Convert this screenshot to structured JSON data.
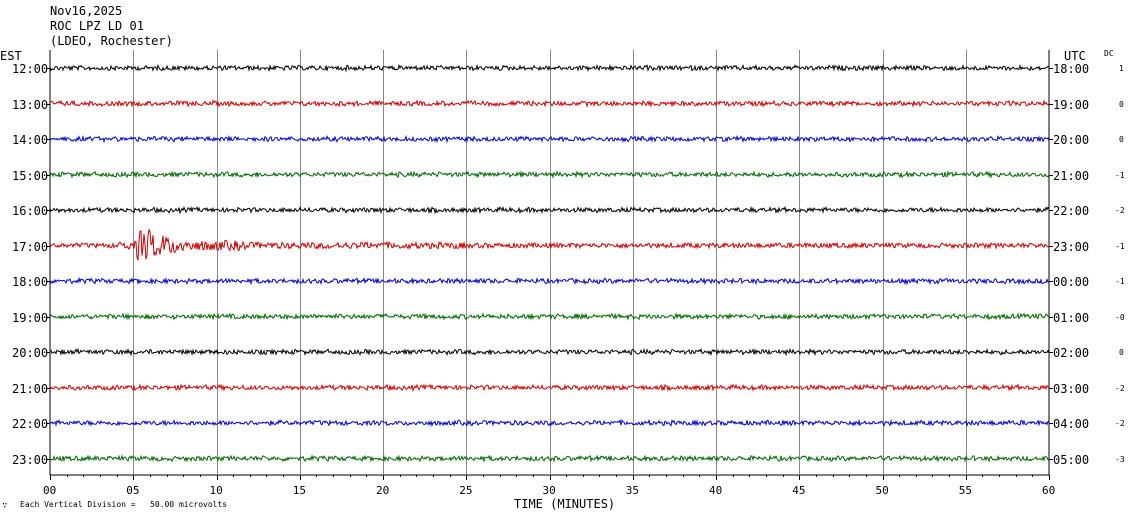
{
  "header": {
    "date": "Nov16,2025",
    "station": "ROC LPZ LD 01",
    "network": "(LDEO, Rochester)"
  },
  "left_zone_label": "EST",
  "right_zone_label": "UTC",
  "dc_label": "DC",
  "footer_note": "Each Vertical Division =   50.00 microvolts",
  "corner_mark": "∵",
  "chart_data": {
    "type": "line",
    "title": "",
    "xlabel": "TIME (MINUTES)",
    "xlim": [
      0,
      60
    ],
    "x_ticks": [
      "00",
      "05",
      "10",
      "15",
      "20",
      "25",
      "30",
      "35",
      "40",
      "45",
      "50",
      "55",
      "60"
    ],
    "grid": "vertical every 5 minutes",
    "vertical_division": "50.00 microvolts",
    "trace_colors": [
      "#000000",
      "#cc0000",
      "#0000cc",
      "#006600"
    ],
    "rows": [
      {
        "est": "12:00",
        "utc": "18:00",
        "dc": "1",
        "amplitude": "low"
      },
      {
        "est": "13:00",
        "utc": "19:00",
        "dc": "0",
        "amplitude": "low"
      },
      {
        "est": "14:00",
        "utc": "20:00",
        "dc": "0",
        "amplitude": "low"
      },
      {
        "est": "15:00",
        "utc": "21:00",
        "dc": "-1",
        "amplitude": "low"
      },
      {
        "est": "16:00",
        "utc": "22:00",
        "dc": "-2",
        "amplitude": "low"
      },
      {
        "est": "17:00",
        "utc": "23:00",
        "dc": "-1",
        "amplitude": "event",
        "event_minutes": [
          4,
          10
        ]
      },
      {
        "est": "18:00",
        "utc": "00:00",
        "dc": "-1",
        "amplitude": "low"
      },
      {
        "est": "19:00",
        "utc": "01:00",
        "dc": "-0",
        "amplitude": "low"
      },
      {
        "est": "20:00",
        "utc": "02:00",
        "dc": "0",
        "amplitude": "low"
      },
      {
        "est": "21:00",
        "utc": "03:00",
        "dc": "-2",
        "amplitude": "low"
      },
      {
        "est": "22:00",
        "utc": "04:00",
        "dc": "-2",
        "amplitude": "low"
      },
      {
        "est": "23:00",
        "utc": "05:00",
        "dc": "-3",
        "amplitude": "low"
      }
    ]
  }
}
